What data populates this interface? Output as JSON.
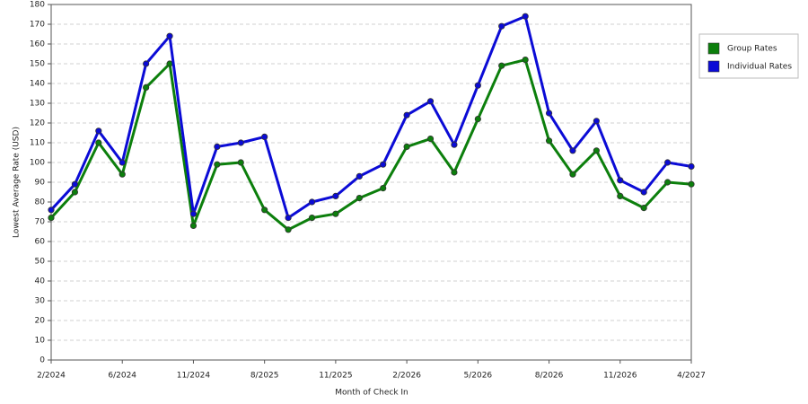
{
  "chart_data": {
    "type": "line",
    "y_label": "Lowest Average Rate (USD)",
    "x_label": "Month of Check In",
    "categories": [
      "2/2024",
      null,
      null,
      "6/2024",
      null,
      null,
      "11/2024",
      null,
      null,
      "8/2025",
      null,
      null,
      "11/2025",
      null,
      null,
      "2/2026",
      null,
      null,
      "5/2026",
      null,
      null,
      "8/2026",
      null,
      null,
      "11/2026",
      null,
      null,
      "4/2027"
    ],
    "series": [
      {
        "name": "Group Rates",
        "color": "#0c7f0c",
        "values": [
          72,
          85,
          110,
          94,
          138,
          150,
          68,
          99,
          100,
          76,
          66,
          72,
          74,
          82,
          87,
          108,
          112,
          95,
          122,
          149,
          152,
          111,
          94,
          106,
          83,
          77,
          90,
          89
        ]
      },
      {
        "name": "Individual Rates",
        "color": "#0b0bd6",
        "values": [
          76,
          89,
          116,
          100,
          150,
          164,
          74,
          108,
          110,
          113,
          72,
          80,
          83,
          93,
          99,
          124,
          131,
          109,
          139,
          169,
          174,
          125,
          106,
          121,
          91,
          85,
          100,
          98
        ]
      }
    ],
    "ylim": [
      0,
      180
    ],
    "yticks": [
      0,
      10,
      20,
      30,
      40,
      50,
      60,
      70,
      80,
      90,
      100,
      110,
      120,
      130,
      140,
      150,
      160,
      170,
      180
    ],
    "grid": true,
    "legend": "right"
  }
}
